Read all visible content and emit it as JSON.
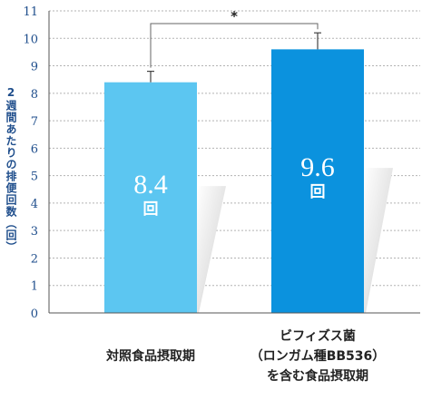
{
  "chart_data": {
    "type": "bar",
    "categories": [
      [
        "対照食品摂取期"
      ],
      [
        "ビフィズス菌",
        "（ロンガム種BB536）",
        "を含む食品摂取期"
      ]
    ],
    "values": [
      8.4,
      9.6
    ],
    "error_bars": [
      0.4,
      0.6
    ],
    "value_unit": "回",
    "ylabel": "2週間あたりの排便回数（回）",
    "ylim": [
      0,
      11
    ],
    "yticks": [
      0,
      1,
      2,
      3,
      4,
      5,
      6,
      7,
      8,
      9,
      10,
      11
    ],
    "grid": true,
    "significance": "*",
    "colors": {
      "bar1": "#5cc6f1",
      "bar2": "#0b92de",
      "ticks": "#1f4e8c",
      "grid": "#b3b3b3",
      "axis": "#555555"
    }
  }
}
